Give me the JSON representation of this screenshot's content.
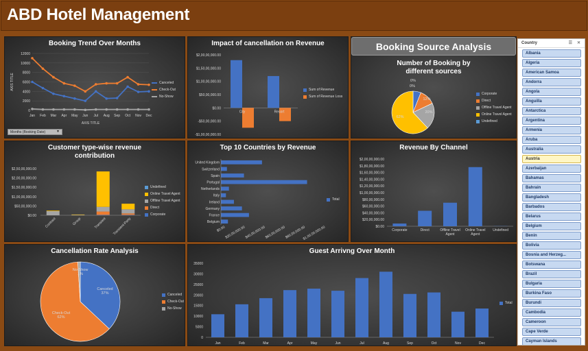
{
  "header": {
    "title": "ABD Hotel Management"
  },
  "booking_trend": {
    "title": "Booking Trend Over Months",
    "dropdown_label": "Months (Booking Date)",
    "axis_y_title": "AXIS TITLE",
    "axis_x_title": "AXIS TITLE"
  },
  "cancel_impact": {
    "title": "Impact of cancellation on Revenue"
  },
  "booking_source": {
    "banner": "Booking Source Analysis",
    "title": "Number of Booking by different sources"
  },
  "customer_type": {
    "title": "Customer type-wise revenue contribution"
  },
  "top_countries": {
    "title": "Top 10 Countries by Revenue"
  },
  "channel": {
    "title": "Revenue By Channel"
  },
  "cancel_rate": {
    "title": "Cancellation Rate Analysis"
  },
  "guest": {
    "title": "Guest Arrivng Over Month"
  },
  "slicer": {
    "title": "Country",
    "items": [
      "Albania",
      "Algeria",
      "American Samoa",
      "Andorra",
      "Angola",
      "Anguilla",
      "Antarctica",
      "Argentina",
      "Armenia",
      "Aruba",
      "Australia",
      "Austria",
      "Azerbaijan",
      "Bahamas",
      "Bahrain",
      "Bangladesh",
      "Barbados",
      "Belarus",
      "Belgium",
      "Benin",
      "Bolivia",
      "Bosnia and Herzeg...",
      "Botswana",
      "Brazil",
      "Bulgaria",
      "Burkina Faso",
      "Burundi",
      "Cambodia",
      "Cameroon",
      "Cape Verde",
      "Cayman Islands"
    ],
    "selected": "Austria"
  },
  "chart_data": [
    {
      "type": "line",
      "name": "booking_trend",
      "categories": [
        "Jan",
        "Feb",
        "Mar",
        "Apr",
        "May",
        "Jun",
        "Jul",
        "Aug",
        "Sep",
        "Oct",
        "Nov",
        "Dec"
      ],
      "yticks": [
        "0",
        "2000",
        "4000",
        "6000",
        "8000",
        "10000",
        "12000"
      ],
      "ylim": [
        0,
        12000
      ],
      "series": [
        {
          "name": "Canceled",
          "color": "#4472c4",
          "values": [
            6000,
            4700,
            3500,
            3000,
            2500,
            2000,
            4000,
            2500,
            2600,
            5000,
            3900,
            4000
          ]
        },
        {
          "name": "Check-Out",
          "color": "#ed7d31",
          "values": [
            11000,
            8800,
            7000,
            5700,
            5200,
            4000,
            5500,
            5700,
            5700,
            7000,
            5500,
            5400
          ]
        },
        {
          "name": "No-Show",
          "color": "#a5a5a5",
          "values": [
            300,
            200,
            200,
            200,
            200,
            100,
            200,
            200,
            200,
            200,
            200,
            200
          ]
        }
      ]
    },
    {
      "type": "bar",
      "name": "cancel_impact",
      "categories": [
        "City",
        "Resort"
      ],
      "yticks": [
        "$2,00,00,000.00",
        "$1,50,00,000.00",
        "$1,00,00,000.00",
        "$50,00,000.00",
        "$0.00",
        "-$50,00,000.00",
        "-$1,00,00,000.00"
      ],
      "ylim": [
        -10000000,
        20000000
      ],
      "series": [
        {
          "name": "Sum of Revenue",
          "color": "#4472c4",
          "values": [
            18000000,
            12000000
          ]
        },
        {
          "name": "Sum of Revenue Loss",
          "color": "#ed7d31",
          "values": [
            -7500000,
            -5000000
          ]
        }
      ]
    },
    {
      "type": "pie",
      "name": "booking_source",
      "labels": [
        "Corporate",
        "Direct",
        "Offline Travel Agent",
        "Online Travel Agent",
        "Undefined"
      ],
      "values": [
        6,
        12,
        20,
        62,
        0
      ],
      "data_labels": [
        "",
        "12%",
        "20%",
        "62%",
        "0%"
      ],
      "extra_labels": [
        "0%"
      ],
      "colors": [
        "#4472c4",
        "#ed7d31",
        "#a5a5a5",
        "#ffc000",
        "#5b9bd5"
      ]
    },
    {
      "type": "bar",
      "name": "customer_type",
      "stacked": true,
      "categories": [
        "Contract",
        "Group",
        "Transient",
        "Transient-Party"
      ],
      "yticks": [
        "$2,50,00,000.00",
        "$2,00,00,000.00",
        "$1,50,00,000.00",
        "$1,00,00,000.00",
        "$50,00,000.00",
        "$0.00"
      ],
      "ylim": [
        0,
        25000000
      ],
      "series": [
        {
          "name": "Corporate",
          "color": "#4472c4",
          "values": [
            0,
            0,
            200000,
            200000
          ]
        },
        {
          "name": "Direct",
          "color": "#ed7d31",
          "values": [
            0,
            0,
            1800000,
            800000
          ]
        },
        {
          "name": "Offline Travel Agent",
          "color": "#a5a5a5",
          "values": [
            2200000,
            200000,
            2500000,
            2200000
          ]
        },
        {
          "name": "Online Travel Agent",
          "color": "#ffc000",
          "values": [
            300000,
            200000,
            19000000,
            3000000
          ]
        },
        {
          "name": "Undefined",
          "color": "#5b9bd5",
          "values": [
            0,
            0,
            0,
            0
          ]
        }
      ]
    },
    {
      "type": "bar",
      "name": "top_countries",
      "orientation": "horizontal",
      "categories": [
        "United Kingdom",
        "Switzerland",
        "Spain",
        "Portugal",
        "Netherlands",
        "Italy",
        "Ireland",
        "Germany",
        "France",
        "Belgium"
      ],
      "values": [
        4100000,
        600000,
        2300000,
        8600000,
        800000,
        500000,
        1300000,
        2100000,
        2800000,
        700000
      ],
      "xticks": [
        "$0.00",
        "$20,00,000.00",
        "$40,00,000.00",
        "$60,00,000.00",
        "$80,00,000.00",
        "$1,00,00,000.00"
      ],
      "xlim": [
        0,
        10000000
      ],
      "series_name": "Total",
      "color": "#4472c4"
    },
    {
      "type": "bar",
      "name": "channel",
      "categories": [
        "Corporate",
        "Direct",
        "Offline Travel Agent",
        "Online Travel Agent",
        "Undefined"
      ],
      "values": [
        800000,
        4600000,
        7000000,
        17600000,
        50000
      ],
      "yticks": [
        "$2,00,00,000.00",
        "$1,80,00,000.00",
        "$1,60,00,000.00",
        "$1,40,00,000.00",
        "$1,20,00,000.00",
        "$1,00,00,000.00",
        "$80,00,000.00",
        "$60,00,000.00",
        "$40,00,000.00",
        "$20,00,000.00",
        "$0.00"
      ],
      "ylim": [
        0,
        20000000
      ],
      "color": "#4472c4"
    },
    {
      "type": "pie",
      "name": "cancel_rate",
      "labels": [
        "Canceled",
        "Check-Out",
        "No-Show"
      ],
      "values": [
        37,
        62,
        1
      ],
      "data_labels": [
        "37%",
        "62%",
        "1%"
      ],
      "colors": [
        "#4472c4",
        "#ed7d31",
        "#a5a5a5"
      ]
    },
    {
      "type": "bar",
      "name": "guest",
      "categories": [
        "Jan",
        "Feb",
        "Mar",
        "Apr",
        "May",
        "Jun",
        "Jul",
        "Aug",
        "Sep",
        "Oct",
        "Nov",
        "Dec"
      ],
      "values": [
        10900,
        15600,
        18500,
        22300,
        23000,
        22000,
        28000,
        31000,
        20500,
        21200,
        12100,
        13600
      ],
      "yticks": [
        "0",
        "5000",
        "10000",
        "15000",
        "20000",
        "25000",
        "30000",
        "35000"
      ],
      "ylim": [
        0,
        35000
      ],
      "series_name": "Total",
      "color": "#4472c4"
    }
  ]
}
